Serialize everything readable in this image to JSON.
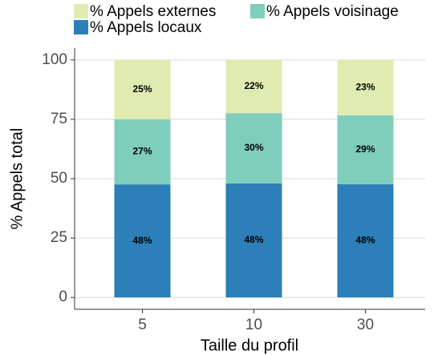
{
  "chart_data": {
    "type": "stacked_bar",
    "categories": [
      "5",
      "10",
      "30"
    ],
    "series": [
      {
        "name": "% Appels locaux",
        "color": "#2c7fb8",
        "values": [
          47.6,
          48.0,
          47.7
        ],
        "value_labels": [
          "48%",
          "48%",
          "48%"
        ]
      },
      {
        "name": "% Appels voisinage",
        "color": "#7fcdbb",
        "values": [
          27.4,
          29.6,
          29.0
        ],
        "value_labels": [
          "27%",
          "30%",
          "29%"
        ]
      },
      {
        "name": "% Appels externes",
        "color": "#e0ebb2",
        "values": [
          25.0,
          22.4,
          23.3
        ],
        "value_labels": [
          "25%",
          "22%",
          "23%"
        ]
      }
    ],
    "x_label": "Taille du profil",
    "y_label": "% Appels total",
    "ylim": [
      -5,
      105
    ],
    "yticks": [
      0,
      25,
      50,
      75,
      100
    ],
    "grid": true,
    "legend": "top"
  }
}
